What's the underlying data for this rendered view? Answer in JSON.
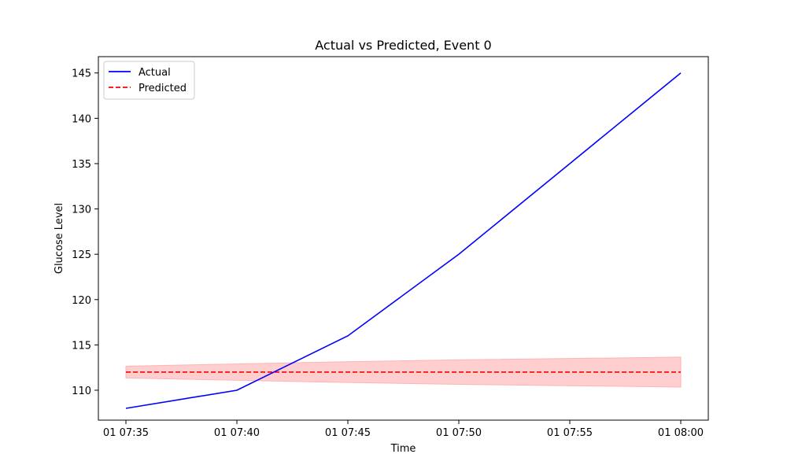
{
  "chart_data": {
    "type": "line",
    "title": "Actual vs Predicted, Event 0",
    "xlabel": "Time",
    "ylabel": "Glucose Level",
    "x": [
      "01 07:35",
      "01 07:40",
      "01 07:45",
      "01 07:50",
      "01 07:55",
      "01 08:00"
    ],
    "x_ticks": [
      "01 07:35",
      "01 07:40",
      "01 07:45",
      "01 07:50",
      "01 07:55",
      "01 08:00"
    ],
    "y_ticks": [
      110,
      115,
      120,
      125,
      130,
      135,
      140,
      145
    ],
    "ylim": [
      106.7,
      146.8
    ],
    "grid": false,
    "legend_position": "top-left",
    "series": [
      {
        "name": "Actual",
        "color": "#0000ff",
        "style": "solid",
        "values": [
          108,
          110,
          116,
          125,
          135,
          145
        ]
      },
      {
        "name": "Predicted",
        "color": "#ff0000",
        "style": "dashed",
        "values": [
          112,
          112,
          112,
          112,
          112,
          112
        ],
        "band_lower": [
          111.35,
          111.1,
          110.85,
          110.65,
          110.5,
          110.35
        ],
        "band_upper": [
          112.65,
          112.9,
          113.15,
          113.35,
          113.5,
          113.65
        ],
        "band_color": "#ffcccc"
      }
    ]
  }
}
